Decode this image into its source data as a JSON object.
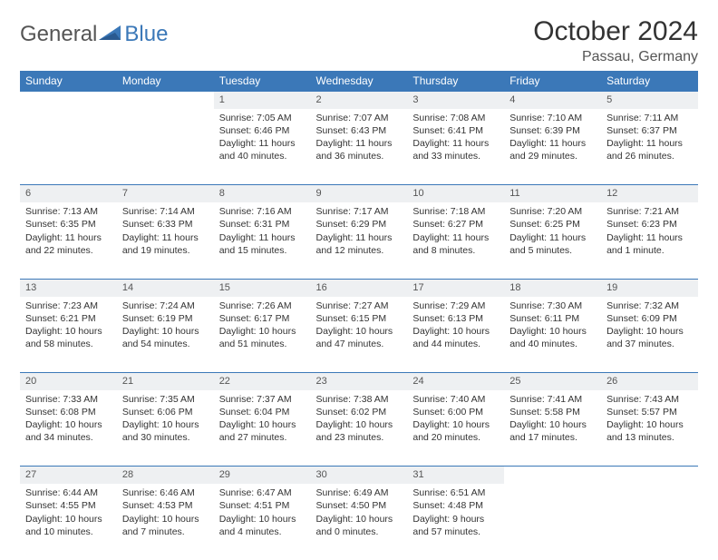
{
  "brand": {
    "part1": "General",
    "part2": "Blue",
    "accent": "#3b78b8",
    "text_color": "#555"
  },
  "title": "October 2024",
  "location": "Passau, Germany",
  "colors": {
    "header_bg": "#3b78b8",
    "daynum_bg": "#eef0f2",
    "rule": "#3b78b8",
    "body_text": "#333333"
  },
  "weekdays": [
    "Sunday",
    "Monday",
    "Tuesday",
    "Wednesday",
    "Thursday",
    "Friday",
    "Saturday"
  ],
  "weeks": [
    [
      null,
      null,
      {
        "d": "1",
        "sr": "7:05 AM",
        "ss": "6:46 PM",
        "dl": "11 hours and 40 minutes."
      },
      {
        "d": "2",
        "sr": "7:07 AM",
        "ss": "6:43 PM",
        "dl": "11 hours and 36 minutes."
      },
      {
        "d": "3",
        "sr": "7:08 AM",
        "ss": "6:41 PM",
        "dl": "11 hours and 33 minutes."
      },
      {
        "d": "4",
        "sr": "7:10 AM",
        "ss": "6:39 PM",
        "dl": "11 hours and 29 minutes."
      },
      {
        "d": "5",
        "sr": "7:11 AM",
        "ss": "6:37 PM",
        "dl": "11 hours and 26 minutes."
      }
    ],
    [
      {
        "d": "6",
        "sr": "7:13 AM",
        "ss": "6:35 PM",
        "dl": "11 hours and 22 minutes."
      },
      {
        "d": "7",
        "sr": "7:14 AM",
        "ss": "6:33 PM",
        "dl": "11 hours and 19 minutes."
      },
      {
        "d": "8",
        "sr": "7:16 AM",
        "ss": "6:31 PM",
        "dl": "11 hours and 15 minutes."
      },
      {
        "d": "9",
        "sr": "7:17 AM",
        "ss": "6:29 PM",
        "dl": "11 hours and 12 minutes."
      },
      {
        "d": "10",
        "sr": "7:18 AM",
        "ss": "6:27 PM",
        "dl": "11 hours and 8 minutes."
      },
      {
        "d": "11",
        "sr": "7:20 AM",
        "ss": "6:25 PM",
        "dl": "11 hours and 5 minutes."
      },
      {
        "d": "12",
        "sr": "7:21 AM",
        "ss": "6:23 PM",
        "dl": "11 hours and 1 minute."
      }
    ],
    [
      {
        "d": "13",
        "sr": "7:23 AM",
        "ss": "6:21 PM",
        "dl": "10 hours and 58 minutes."
      },
      {
        "d": "14",
        "sr": "7:24 AM",
        "ss": "6:19 PM",
        "dl": "10 hours and 54 minutes."
      },
      {
        "d": "15",
        "sr": "7:26 AM",
        "ss": "6:17 PM",
        "dl": "10 hours and 51 minutes."
      },
      {
        "d": "16",
        "sr": "7:27 AM",
        "ss": "6:15 PM",
        "dl": "10 hours and 47 minutes."
      },
      {
        "d": "17",
        "sr": "7:29 AM",
        "ss": "6:13 PM",
        "dl": "10 hours and 44 minutes."
      },
      {
        "d": "18",
        "sr": "7:30 AM",
        "ss": "6:11 PM",
        "dl": "10 hours and 40 minutes."
      },
      {
        "d": "19",
        "sr": "7:32 AM",
        "ss": "6:09 PM",
        "dl": "10 hours and 37 minutes."
      }
    ],
    [
      {
        "d": "20",
        "sr": "7:33 AM",
        "ss": "6:08 PM",
        "dl": "10 hours and 34 minutes."
      },
      {
        "d": "21",
        "sr": "7:35 AM",
        "ss": "6:06 PM",
        "dl": "10 hours and 30 minutes."
      },
      {
        "d": "22",
        "sr": "7:37 AM",
        "ss": "6:04 PM",
        "dl": "10 hours and 27 minutes."
      },
      {
        "d": "23",
        "sr": "7:38 AM",
        "ss": "6:02 PM",
        "dl": "10 hours and 23 minutes."
      },
      {
        "d": "24",
        "sr": "7:40 AM",
        "ss": "6:00 PM",
        "dl": "10 hours and 20 minutes."
      },
      {
        "d": "25",
        "sr": "7:41 AM",
        "ss": "5:58 PM",
        "dl": "10 hours and 17 minutes."
      },
      {
        "d": "26",
        "sr": "7:43 AM",
        "ss": "5:57 PM",
        "dl": "10 hours and 13 minutes."
      }
    ],
    [
      {
        "d": "27",
        "sr": "6:44 AM",
        "ss": "4:55 PM",
        "dl": "10 hours and 10 minutes."
      },
      {
        "d": "28",
        "sr": "6:46 AM",
        "ss": "4:53 PM",
        "dl": "10 hours and 7 minutes."
      },
      {
        "d": "29",
        "sr": "6:47 AM",
        "ss": "4:51 PM",
        "dl": "10 hours and 4 minutes."
      },
      {
        "d": "30",
        "sr": "6:49 AM",
        "ss": "4:50 PM",
        "dl": "10 hours and 0 minutes."
      },
      {
        "d": "31",
        "sr": "6:51 AM",
        "ss": "4:48 PM",
        "dl": "9 hours and 57 minutes."
      },
      null,
      null
    ]
  ],
  "labels": {
    "sunrise": "Sunrise: ",
    "sunset": "Sunset: ",
    "daylight": "Daylight: "
  }
}
